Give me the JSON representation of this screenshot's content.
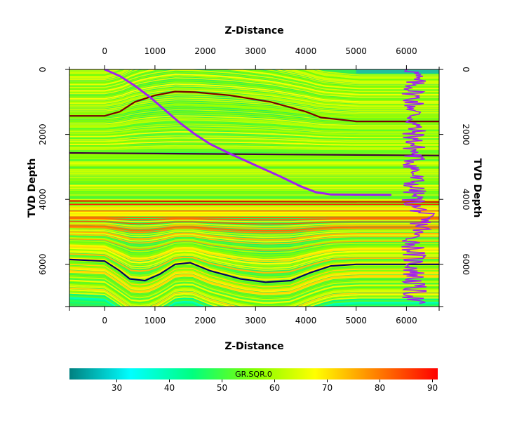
{
  "chart_data": {
    "type": "heatmap",
    "x_axis_title_top": "Z-Distance",
    "x_axis_title_bottom": "Z-Distance",
    "y_axis_title_left": "TVD Depth",
    "y_axis_title_right": "TVD Depth",
    "x_range": [
      -700,
      6650
    ],
    "y_range": [
      0,
      7300
    ],
    "y_inverted": true,
    "x_ticks": [
      0,
      1000,
      2000,
      3000,
      4000,
      5000,
      6000
    ],
    "x_tick_labels": [
      "0",
      "1000",
      "2000",
      "3000",
      "4000",
      "5000",
      "6000"
    ],
    "y_ticks": [
      0,
      2000,
      4000,
      6000
    ],
    "y_tick_labels": [
      "0",
      "2000",
      "4000",
      "6000"
    ],
    "grid": false,
    "colorbar": {
      "title": "GR.SQR.0",
      "range": [
        21,
        91
      ],
      "ticks": [
        30,
        40,
        50,
        60,
        70,
        80,
        90
      ],
      "tick_labels": [
        "30",
        "40",
        "50",
        "60",
        "70",
        "80",
        "90"
      ],
      "colors": [
        "#008080",
        "#00ffff",
        "#00ff80",
        "#80ff00",
        "#ffff00",
        "#ff8000",
        "#ff0000"
      ],
      "placement": "bottom"
    },
    "background_color": "#33ee55",
    "horizons": [
      {
        "color": "#7a0000",
        "points": [
          [
            -700,
            1430
          ],
          [
            0,
            1430
          ],
          [
            300,
            1300
          ],
          [
            600,
            1000
          ],
          [
            1000,
            800
          ],
          [
            1400,
            680
          ],
          [
            1800,
            700
          ],
          [
            2500,
            800
          ],
          [
            3300,
            1000
          ],
          [
            4000,
            1300
          ],
          [
            4300,
            1480
          ],
          [
            4900,
            1580
          ],
          [
            5000,
            1600
          ],
          [
            6650,
            1600
          ]
        ]
      },
      {
        "color": "#3a003a",
        "points": [
          [
            -700,
            2570
          ],
          [
            6650,
            2650
          ]
        ]
      },
      {
        "color": "#cc2000",
        "points": [
          [
            -700,
            4050
          ],
          [
            6650,
            4080
          ]
        ]
      },
      {
        "color": "#000066",
        "points": [
          [
            -700,
            5850
          ],
          [
            0,
            5900
          ],
          [
            300,
            6200
          ],
          [
            500,
            6450
          ],
          [
            800,
            6500
          ],
          [
            1100,
            6300
          ],
          [
            1400,
            6000
          ],
          [
            1700,
            5950
          ],
          [
            2100,
            6200
          ],
          [
            2700,
            6450
          ],
          [
            3200,
            6550
          ],
          [
            3700,
            6500
          ],
          [
            4100,
            6250
          ],
          [
            4500,
            6050
          ],
          [
            5000,
            6000
          ],
          [
            6650,
            6000
          ]
        ]
      }
    ],
    "well_trajectory": {
      "color": "#a020f0",
      "points": [
        [
          0,
          0
        ],
        [
          300,
          200
        ],
        [
          600,
          500
        ],
        [
          900,
          850
        ],
        [
          1200,
          1250
        ],
        [
          1500,
          1650
        ],
        [
          1800,
          2000
        ],
        [
          2100,
          2300
        ],
        [
          2500,
          2600
        ],
        [
          3000,
          2950
        ],
        [
          3500,
          3300
        ],
        [
          3900,
          3600
        ],
        [
          4200,
          3780
        ],
        [
          4500,
          3850
        ],
        [
          5700,
          3860
        ]
      ]
    },
    "well_log": {
      "color": "#a020f0",
      "base_x": 6150,
      "depth_start": 0,
      "depth_end": 7200
    }
  }
}
